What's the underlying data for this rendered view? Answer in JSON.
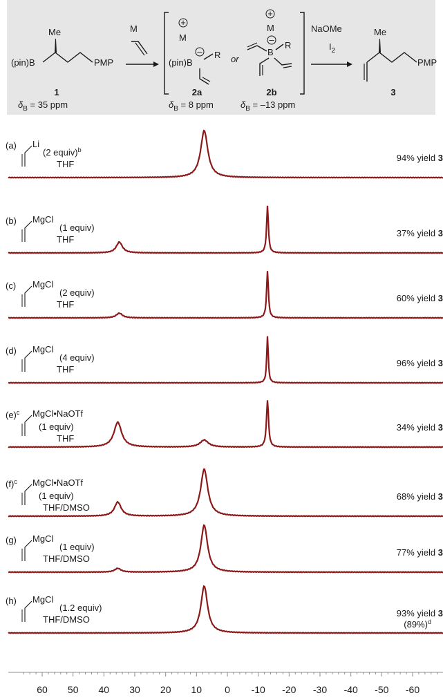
{
  "scheme": {
    "compound1": {
      "boryl": "(pin)B",
      "me": "Me",
      "tail": "PMP",
      "number": "1",
      "shift_prefix": "δ",
      "shift_sub": "B",
      "shift_value": " = 35 ppm"
    },
    "reagent": {
      "metal": "M"
    },
    "ate2a": {
      "metal": "M",
      "plus": "⊕",
      "minus": "⊖",
      "boryl": "(pin)B",
      "r": "R",
      "number": "2a",
      "shift_prefix": "δ",
      "shift_sub": "B",
      "shift_value": " = 8 ppm"
    },
    "or_text": "or",
    "ate2b": {
      "metal": "M",
      "plus": "⊕",
      "minus": "⊖",
      "boron": "B",
      "r": "R",
      "number": "2b",
      "shift_prefix": "δ",
      "shift_sub": "B",
      "shift_value": " = –13 ppm"
    },
    "conditions": {
      "line1": "NaOMe",
      "line2_main": "I",
      "line2_sub": "2"
    },
    "product3": {
      "me": "Me",
      "tail": "PMP",
      "number": "3"
    }
  },
  "chart_data": {
    "type": "line",
    "xlabel": "",
    "ylabel": "",
    "xlim": [
      68,
      -68
    ],
    "x_reversed": true,
    "x_ticks": [
      60,
      50,
      40,
      30,
      20,
      10,
      0,
      -10,
      -20,
      -30,
      -40,
      -50,
      -60
    ],
    "x_tick_labels": [
      "60",
      "50",
      "40",
      "30",
      "20",
      "10",
      "0",
      "-10",
      "-20",
      "-30",
      "-40",
      "-50",
      "-60"
    ],
    "grid": false,
    "line_color": "#8b1a1a",
    "series": [
      {
        "label": "(a)",
        "label_sup": "",
        "reagent": "Li",
        "equiv": "(2 equiv)",
        "equiv_sup": "b",
        "solvent": "THF",
        "yield_text": "94% yield ",
        "yield_bold": "3",
        "yield_extra": "",
        "peaks": [
          {
            "x": 7.5,
            "height": 1.0,
            "width": 1.4
          }
        ]
      },
      {
        "label": "(b)",
        "label_sup": "",
        "reagent": "MgCl",
        "equiv": "(1 equiv)",
        "equiv_sup": "",
        "solvent": "THF",
        "yield_text": "37% yield ",
        "yield_bold": "3",
        "yield_extra": "",
        "peaks": [
          {
            "x": 35,
            "height": 0.23,
            "width": 1.2
          },
          {
            "x": -13,
            "height": 1.0,
            "width": 0.35
          }
        ]
      },
      {
        "label": "(c)",
        "label_sup": "",
        "reagent": "MgCl",
        "equiv": "(2 equiv)",
        "equiv_sup": "",
        "solvent": "THF",
        "yield_text": "60% yield ",
        "yield_bold": "3",
        "yield_extra": "",
        "peaks": [
          {
            "x": 35,
            "height": 0.1,
            "width": 1.2
          },
          {
            "x": -13,
            "height": 1.0,
            "width": 0.35
          }
        ]
      },
      {
        "label": "(d)",
        "label_sup": "",
        "reagent": "MgCl",
        "equiv": "(4 equiv)",
        "equiv_sup": "",
        "solvent": "THF",
        "yield_text": "96% yield ",
        "yield_bold": "3",
        "yield_extra": "",
        "peaks": [
          {
            "x": -13,
            "height": 1.0,
            "width": 0.3
          }
        ]
      },
      {
        "label": "(e)",
        "label_sup": "c",
        "reagent": "MgCl•NaOTf",
        "equiv": "(1 equiv)",
        "equiv_sup": "",
        "solvent": "THF",
        "yield_text": "34% yield ",
        "yield_bold": "3",
        "yield_extra": "",
        "peaks": [
          {
            "x": 35.5,
            "height": 0.53,
            "width": 1.5
          },
          {
            "x": 7.5,
            "height": 0.15,
            "width": 1.6
          },
          {
            "x": -13,
            "height": 1.0,
            "width": 0.4
          }
        ]
      },
      {
        "label": "(f)",
        "label_sup": "c",
        "reagent": "MgCl•NaOTf",
        "equiv": "(1 equiv)",
        "equiv_sup": "",
        "solvent": "THF/DMSO",
        "yield_text": "68% yield ",
        "yield_bold": "3",
        "yield_extra": "",
        "peaks": [
          {
            "x": 35.5,
            "height": 0.3,
            "width": 1.3
          },
          {
            "x": 7.5,
            "height": 1.0,
            "width": 1.4
          }
        ]
      },
      {
        "label": "(g)",
        "label_sup": "",
        "reagent": "MgCl",
        "equiv": "(1 equiv)",
        "equiv_sup": "",
        "solvent": "THF/DMSO",
        "yield_text": "77% yield ",
        "yield_bold": "3",
        "yield_extra": "",
        "peaks": [
          {
            "x": 35.5,
            "height": 0.08,
            "width": 1.2
          },
          {
            "x": 7.5,
            "height": 1.0,
            "width": 1.3
          }
        ]
      },
      {
        "label": "(h)",
        "label_sup": "",
        "reagent": "MgCl",
        "equiv": "(1.2 equiv)",
        "equiv_sup": "",
        "solvent": "THF/DMSO",
        "yield_text": "93% yield ",
        "yield_bold": "3",
        "yield_extra": "(89%)",
        "yield_extra_sup": "d",
        "peaks": [
          {
            "x": 7.5,
            "height": 1.0,
            "width": 1.3
          }
        ]
      }
    ]
  }
}
